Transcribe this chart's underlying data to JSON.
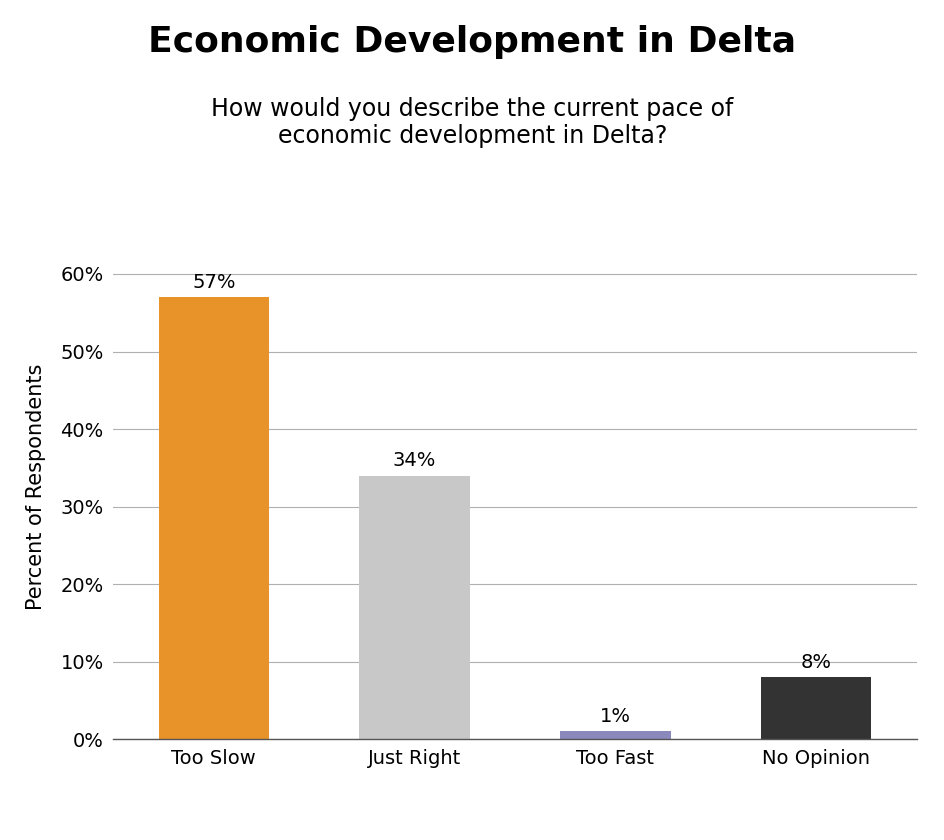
{
  "title": "Economic Development in Delta",
  "subtitle": "How would you describe the current pace of\neconomic development in Delta?",
  "categories": [
    "Too Slow",
    "Just Right",
    "Too Fast",
    "No Opinion"
  ],
  "values": [
    57,
    34,
    1,
    8
  ],
  "labels": [
    "57%",
    "34%",
    "1%",
    "8%"
  ],
  "bar_colors": [
    "#E8922A",
    "#C8C8C8",
    "#8B89BB",
    "#333333"
  ],
  "ylabel": "Percent of Respondents",
  "ylim": [
    0,
    65
  ],
  "yticks": [
    0,
    10,
    20,
    30,
    40,
    50,
    60
  ],
  "ytick_labels": [
    "0%",
    "10%",
    "20%",
    "30%",
    "40%",
    "50%",
    "60%"
  ],
  "background_color": "#ffffff",
  "title_fontsize": 26,
  "subtitle_fontsize": 17,
  "ylabel_fontsize": 15,
  "tick_fontsize": 14,
  "label_fontsize": 14,
  "bar_width": 0.55,
  "grid_color": "#b0b0b0",
  "spine_color": "#555555"
}
